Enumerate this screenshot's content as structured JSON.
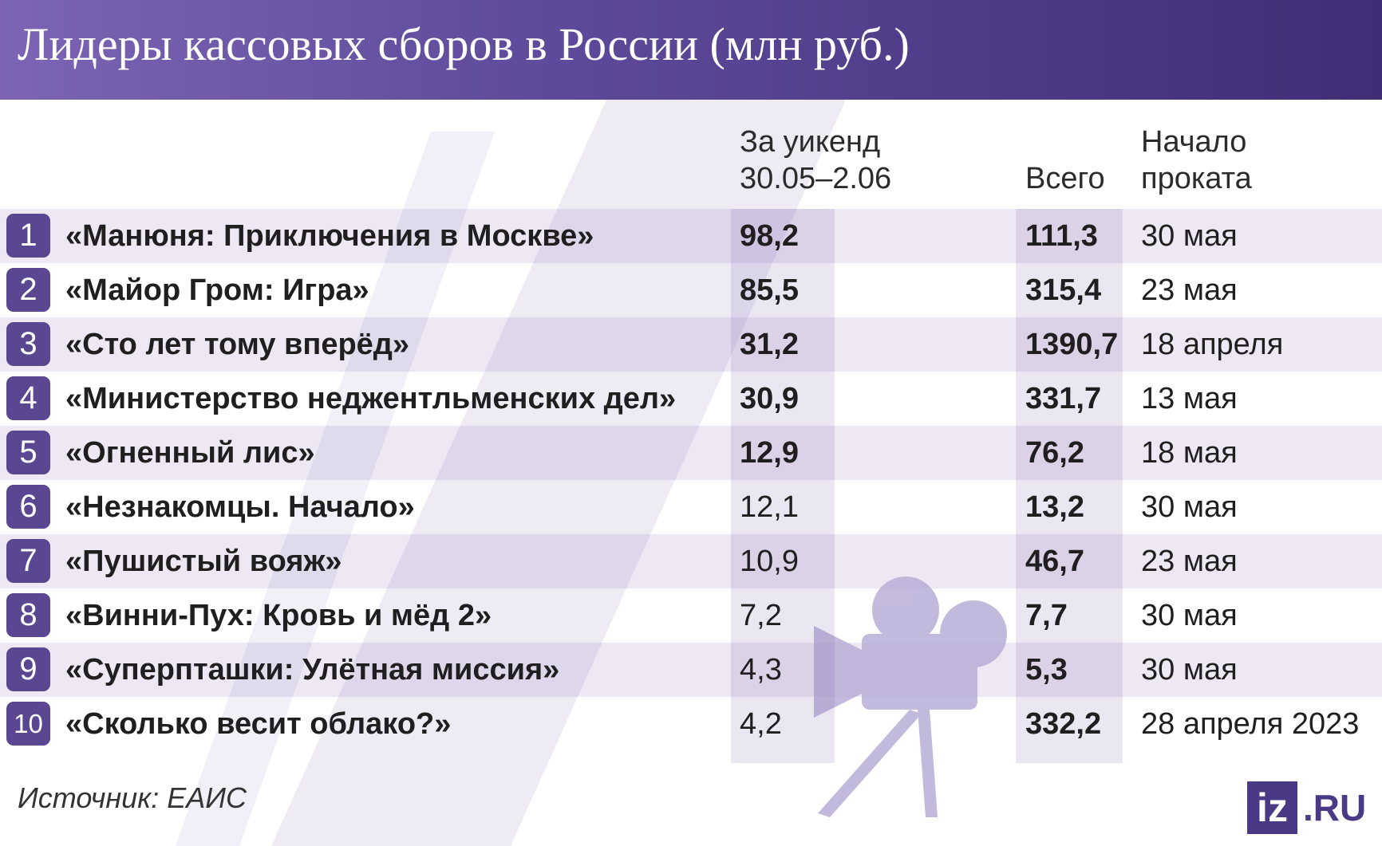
{
  "header": {
    "title": "Лидеры кассовых сборов в России (млн руб.)"
  },
  "columns": {
    "weekend_line1": "За уикенд",
    "weekend_line2": "30.05–2.06",
    "total": "Всего",
    "release_line1": "Начало",
    "release_line2": "проката"
  },
  "chart_data": {
    "type": "table",
    "title": "Лидеры кассовых сборов в России (млн руб.)",
    "columns": [
      "За уикенд 30.05–2.06",
      "Всего",
      "Начало проката"
    ],
    "rows": [
      {
        "rank": "1",
        "title": "«Манюня: Приключения в Москве»",
        "weekend": "98,2",
        "total": "111,3",
        "release": "30 мая"
      },
      {
        "rank": "2",
        "title": "«Майор Гром: Игра»",
        "weekend": "85,5",
        "total": "315,4",
        "release": "23 мая"
      },
      {
        "rank": "3",
        "title": "«Сто лет тому вперёд»",
        "weekend": "31,2",
        "total": "1390,7",
        "release": "18 апреля"
      },
      {
        "rank": "4",
        "title": "«Министерство неджентльменских дел»",
        "weekend": "30,9",
        "total": "331,7",
        "release": "13 мая"
      },
      {
        "rank": "5",
        "title": "«Огненный лис»",
        "weekend": "12,9",
        "total": "76,2",
        "release": "18 мая"
      },
      {
        "rank": "6",
        "title": "«Незнакомцы. Начало»",
        "weekend": "12,1",
        "total": "13,2",
        "release": "30 мая"
      },
      {
        "rank": "7",
        "title": "«Пушистый вояж»",
        "weekend": "10,9",
        "total": "46,7",
        "release": "23 мая"
      },
      {
        "rank": "8",
        "title": "«Винни-Пух: Кровь и мёд 2»",
        "weekend": "7,2",
        "total": "7,7",
        "release": "30 мая"
      },
      {
        "rank": "9",
        "title": "«Суперпташки: Улётная миссия»",
        "weekend": "4,3",
        "total": "5,3",
        "release": "30 мая"
      },
      {
        "rank": "10",
        "title": "«Сколько весит облако?»",
        "weekend": "4,2",
        "total": "332,2",
        "release": "28 апреля 2023"
      }
    ]
  },
  "footer": {
    "source": "Источник: ЕАИС",
    "logo_box": "iz",
    "logo_text": ".RU"
  },
  "colors": {
    "header_start": "#7d64b4",
    "header_end": "#3f2e76",
    "badge": "#5b4791",
    "stripe": "#ede8f4"
  }
}
